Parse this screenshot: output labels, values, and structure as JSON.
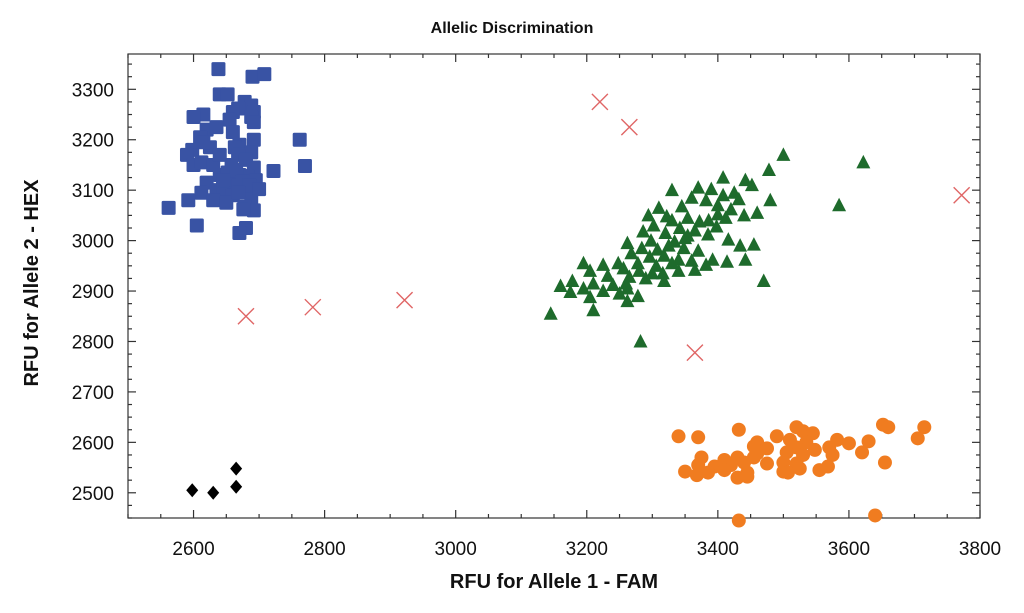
{
  "chart_data": {
    "type": "scatter",
    "title": "Allelic Discrimination",
    "xlabel": "RFU for Allele 1 - FAM",
    "ylabel": "RFU for Allele 2 - HEX",
    "xlim": [
      2500,
      3800
    ],
    "ylim": [
      2450,
      3370
    ],
    "x_ticks": [
      2600,
      2800,
      3000,
      3200,
      3400,
      3600,
      3800
    ],
    "y_ticks": [
      2500,
      2600,
      2700,
      2800,
      2900,
      3000,
      3100,
      3200,
      3300
    ],
    "x_tick_labels": [
      "2600",
      "2800",
      "3000",
      "3200",
      "3400",
      "3600",
      "3800"
    ],
    "y_tick_labels": [
      "2500",
      "2600",
      "2700",
      "2800",
      "2900",
      "3000",
      "3100",
      "3200",
      "3300"
    ],
    "grid": false,
    "legend": "none",
    "series": [
      {
        "marker": "square",
        "color": "#3953a4",
        "points": [
          [
            2638,
            3340
          ],
          [
            2690,
            3325
          ],
          [
            2708,
            3330
          ],
          [
            2640,
            3290
          ],
          [
            2652,
            3290
          ],
          [
            2615,
            3250
          ],
          [
            2600,
            3245
          ],
          [
            2678,
            3275
          ],
          [
            2688,
            3268
          ],
          [
            2692,
            3255
          ],
          [
            2668,
            3262
          ],
          [
            2660,
            3255
          ],
          [
            2655,
            3240
          ],
          [
            2688,
            3245
          ],
          [
            2620,
            3220
          ],
          [
            2635,
            3225
          ],
          [
            2610,
            3205
          ],
          [
            2692,
            3200
          ],
          [
            2762,
            3200
          ],
          [
            2598,
            3180
          ],
          [
            2625,
            3185
          ],
          [
            2670,
            3190
          ],
          [
            2688,
            3175
          ],
          [
            2590,
            3170
          ],
          [
            2663,
            3185
          ],
          [
            2668,
            3170
          ],
          [
            2600,
            3150
          ],
          [
            2612,
            3155
          ],
          [
            2658,
            3150
          ],
          [
            2680,
            3160
          ],
          [
            2692,
            3145
          ],
          [
            2722,
            3138
          ],
          [
            2770,
            3148
          ],
          [
            2640,
            3130
          ],
          [
            2652,
            3135
          ],
          [
            2670,
            3130
          ],
          [
            2682,
            3128
          ],
          [
            2695,
            3120
          ],
          [
            2620,
            3115
          ],
          [
            2655,
            3112
          ],
          [
            2668,
            3110
          ],
          [
            2680,
            3105
          ],
          [
            2635,
            3100
          ],
          [
            2612,
            3095
          ],
          [
            2645,
            3098
          ],
          [
            2660,
            3090
          ],
          [
            2688,
            3085
          ],
          [
            2630,
            3080
          ],
          [
            2592,
            3080
          ],
          [
            2650,
            3075
          ],
          [
            2678,
            3068
          ],
          [
            2562,
            3065
          ],
          [
            2692,
            3060
          ],
          [
            2676,
            3062
          ],
          [
            2605,
            3030
          ],
          [
            2680,
            3025
          ],
          [
            2670,
            3015
          ],
          [
            2665,
            3140
          ],
          [
            2675,
            3118
          ],
          [
            2630,
            3150
          ],
          [
            2640,
            3170
          ],
          [
            2692,
            3235
          ],
          [
            2660,
            3215
          ],
          [
            2685,
            3110
          ],
          [
            2668,
            3096
          ],
          [
            2645,
            3120
          ],
          [
            2615,
            3195
          ],
          [
            2700,
            3102
          ]
        ]
      },
      {
        "marker": "triangle",
        "color": "#1e6b2c",
        "points": [
          [
            3500,
            3170
          ],
          [
            3622,
            3155
          ],
          [
            3478,
            3140
          ],
          [
            3442,
            3120
          ],
          [
            3408,
            3125
          ],
          [
            3452,
            3110
          ],
          [
            3330,
            3100
          ],
          [
            3370,
            3105
          ],
          [
            3390,
            3102
          ],
          [
            3408,
            3090
          ],
          [
            3425,
            3095
          ],
          [
            3360,
            3085
          ],
          [
            3382,
            3080
          ],
          [
            3432,
            3082
          ],
          [
            3480,
            3080
          ],
          [
            3585,
            3070
          ],
          [
            3310,
            3065
          ],
          [
            3345,
            3068
          ],
          [
            3400,
            3070
          ],
          [
            3420,
            3062
          ],
          [
            3294,
            3050
          ],
          [
            3322,
            3048
          ],
          [
            3354,
            3045
          ],
          [
            3386,
            3040
          ],
          [
            3412,
            3045
          ],
          [
            3440,
            3050
          ],
          [
            3372,
            3038
          ],
          [
            3398,
            3028
          ],
          [
            3302,
            3030
          ],
          [
            3342,
            3025
          ],
          [
            3365,
            3020
          ],
          [
            3286,
            3018
          ],
          [
            3320,
            3015
          ],
          [
            3354,
            3010
          ],
          [
            3385,
            3012
          ],
          [
            3416,
            3002
          ],
          [
            3298,
            3000
          ],
          [
            3334,
            2998
          ],
          [
            3262,
            2995
          ],
          [
            3284,
            2985
          ],
          [
            3308,
            2982
          ],
          [
            3325,
            2990
          ],
          [
            3348,
            2985
          ],
          [
            3370,
            2980
          ],
          [
            3434,
            2990
          ],
          [
            3455,
            2992
          ],
          [
            3268,
            2975
          ],
          [
            3296,
            2968
          ],
          [
            3318,
            2970
          ],
          [
            3340,
            2962
          ],
          [
            3248,
            2955
          ],
          [
            3278,
            2955
          ],
          [
            3306,
            2950
          ],
          [
            3330,
            2955
          ],
          [
            3360,
            2960
          ],
          [
            3392,
            2962
          ],
          [
            3414,
            2958
          ],
          [
            3442,
            2962
          ],
          [
            3195,
            2955
          ],
          [
            3225,
            2952
          ],
          [
            3256,
            2945
          ],
          [
            3280,
            2940
          ],
          [
            3316,
            2935
          ],
          [
            3340,
            2940
          ],
          [
            3365,
            2942
          ],
          [
            3382,
            2952
          ],
          [
            3205,
            2940
          ],
          [
            3232,
            2930
          ],
          [
            3265,
            2928
          ],
          [
            3290,
            2925
          ],
          [
            3318,
            2920
          ],
          [
            3178,
            2920
          ],
          [
            3210,
            2915
          ],
          [
            3240,
            2912
          ],
          [
            3262,
            2905
          ],
          [
            3160,
            2910
          ],
          [
            3195,
            2905
          ],
          [
            3225,
            2900
          ],
          [
            3250,
            2895
          ],
          [
            3278,
            2890
          ],
          [
            3175,
            2898
          ],
          [
            3205,
            2888
          ],
          [
            3262,
            2880
          ],
          [
            3470,
            2920
          ],
          [
            3145,
            2855
          ],
          [
            3210,
            2862
          ],
          [
            3282,
            2800
          ],
          [
            3260,
            2915
          ],
          [
            3300,
            2935
          ],
          [
            3350,
            3005
          ],
          [
            3400,
            3052
          ],
          [
            3460,
            3055
          ],
          [
            3330,
            3040
          ]
        ]
      },
      {
        "marker": "circle",
        "color": "#f07c20",
        "points": [
          [
            3652,
            2635
          ],
          [
            3660,
            2630
          ],
          [
            3715,
            2630
          ],
          [
            3520,
            2630
          ],
          [
            3432,
            2625
          ],
          [
            3530,
            2622
          ],
          [
            3545,
            2618
          ],
          [
            3340,
            2612
          ],
          [
            3370,
            2610
          ],
          [
            3490,
            2612
          ],
          [
            3510,
            2605
          ],
          [
            3582,
            2605
          ],
          [
            3630,
            2602
          ],
          [
            3705,
            2608
          ],
          [
            3460,
            2600
          ],
          [
            3535,
            2600
          ],
          [
            3600,
            2598
          ],
          [
            3455,
            2592
          ],
          [
            3475,
            2588
          ],
          [
            3520,
            2590
          ],
          [
            3548,
            2585
          ],
          [
            3570,
            2590
          ],
          [
            3460,
            2578
          ],
          [
            3505,
            2580
          ],
          [
            3530,
            2575
          ],
          [
            3575,
            2575
          ],
          [
            3620,
            2580
          ],
          [
            3455,
            2570
          ],
          [
            3375,
            2570
          ],
          [
            3410,
            2565
          ],
          [
            3430,
            2570
          ],
          [
            3440,
            2560
          ],
          [
            3370,
            2555
          ],
          [
            3395,
            2552
          ],
          [
            3420,
            2555
          ],
          [
            3475,
            2558
          ],
          [
            3500,
            2560
          ],
          [
            3520,
            2558
          ],
          [
            3655,
            2560
          ],
          [
            3525,
            2548
          ],
          [
            3568,
            2552
          ],
          [
            3350,
            2542
          ],
          [
            3385,
            2540
          ],
          [
            3410,
            2545
          ],
          [
            3445,
            2540
          ],
          [
            3500,
            2542
          ],
          [
            3555,
            2545
          ],
          [
            3368,
            2535
          ],
          [
            3430,
            2530
          ],
          [
            3445,
            2532
          ],
          [
            3507,
            2540
          ],
          [
            3640,
            2455
          ],
          [
            3432,
            2445
          ]
        ]
      },
      {
        "marker": "x",
        "color": "#e06666",
        "points": [
          [
            3220,
            3275
          ],
          [
            3265,
            3225
          ],
          [
            3772,
            3090
          ],
          [
            2922,
            2882
          ],
          [
            2782,
            2868
          ],
          [
            2680,
            2850
          ],
          [
            3365,
            2778
          ]
        ]
      },
      {
        "marker": "diamond",
        "color": "#000000",
        "points": [
          [
            2665,
            2548
          ],
          [
            2665,
            2512
          ],
          [
            2598,
            2505
          ],
          [
            2630,
            2500
          ]
        ]
      }
    ]
  }
}
